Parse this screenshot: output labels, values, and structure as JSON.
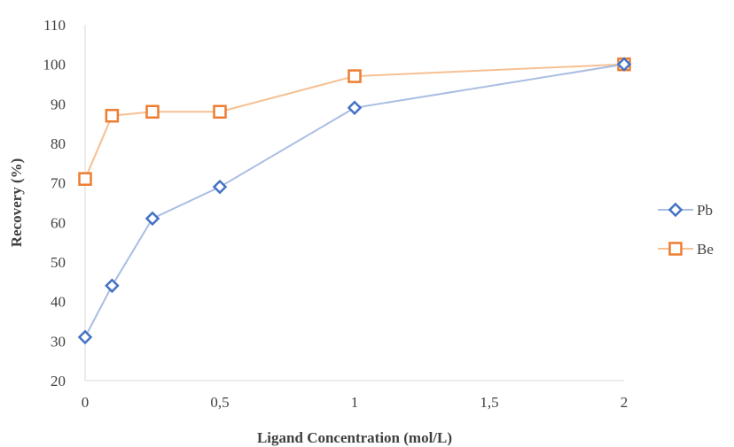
{
  "chart_data": {
    "type": "line",
    "x": [
      0,
      0.1,
      0.25,
      0.5,
      1,
      2
    ],
    "series": [
      {
        "name": "Pb",
        "values": [
          31,
          44,
          61,
          69,
          89,
          100
        ],
        "line_color": "#a9bde3",
        "marker_color": "#4472c4",
        "marker": "diamond"
      },
      {
        "name": "Be",
        "values": [
          71,
          87,
          88,
          88,
          97,
          100
        ],
        "line_color": "#f6c092",
        "marker_color": "#ed7d31",
        "marker": "square"
      }
    ],
    "xlabel": "Ligand Concentration (mol/L)",
    "ylabel": "Recovery (%)",
    "xlim": [
      0,
      2
    ],
    "ylim": [
      20,
      110
    ],
    "x_ticks": [
      0,
      0.5,
      1,
      1.5,
      2
    ],
    "x_tick_labels": [
      "0",
      "0,5",
      "1",
      "1,5",
      "2"
    ],
    "y_ticks": [
      20,
      30,
      40,
      50,
      60,
      70,
      80,
      90,
      100,
      110
    ],
    "y_tick_labels": [
      "20",
      "30",
      "40",
      "50",
      "60",
      "70",
      "80",
      "90",
      "100",
      "110"
    ],
    "grid": false,
    "legend_position": "right"
  }
}
